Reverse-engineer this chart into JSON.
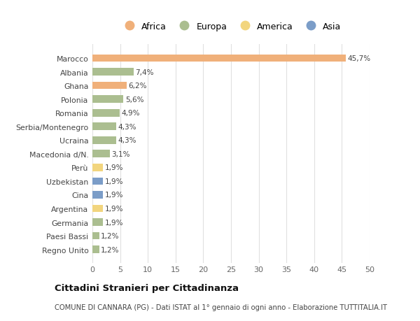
{
  "countries": [
    "Marocco",
    "Albania",
    "Ghana",
    "Polonia",
    "Romania",
    "Serbia/Montenegro",
    "Ucraina",
    "Macedonia d/N.",
    "Perù",
    "Uzbekistan",
    "Cina",
    "Argentina",
    "Germania",
    "Paesi Bassi",
    "Regno Unito"
  ],
  "values": [
    45.7,
    7.4,
    6.2,
    5.6,
    4.9,
    4.3,
    4.3,
    3.1,
    1.9,
    1.9,
    1.9,
    1.9,
    1.9,
    1.2,
    1.2
  ],
  "labels": [
    "45,7%",
    "7,4%",
    "6,2%",
    "5,6%",
    "4,9%",
    "4,3%",
    "4,3%",
    "3,1%",
    "1,9%",
    "1,9%",
    "1,9%",
    "1,9%",
    "1,9%",
    "1,2%",
    "1,2%"
  ],
  "continents": [
    "Africa",
    "Europa",
    "Africa",
    "Europa",
    "Europa",
    "Europa",
    "Europa",
    "Europa",
    "America",
    "Asia",
    "Asia",
    "America",
    "Europa",
    "Europa",
    "Europa"
  ],
  "continent_colors": {
    "Africa": "#F0B07A",
    "Europa": "#ABBE90",
    "America": "#F2D57E",
    "Asia": "#7B9DC8"
  },
  "legend_order": [
    "Africa",
    "Europa",
    "America",
    "Asia"
  ],
  "xlim": [
    0,
    50
  ],
  "xticks": [
    0,
    5,
    10,
    15,
    20,
    25,
    30,
    35,
    40,
    45,
    50
  ],
  "title": "Cittadini Stranieri per Cittadinanza",
  "subtitle": "COMUNE DI CANNARA (PG) - Dati ISTAT al 1° gennaio di ogni anno - Elaborazione TUTTITALIA.IT",
  "bg_color": "#ffffff",
  "grid_color": "#e0e0e0",
  "bar_height": 0.55
}
